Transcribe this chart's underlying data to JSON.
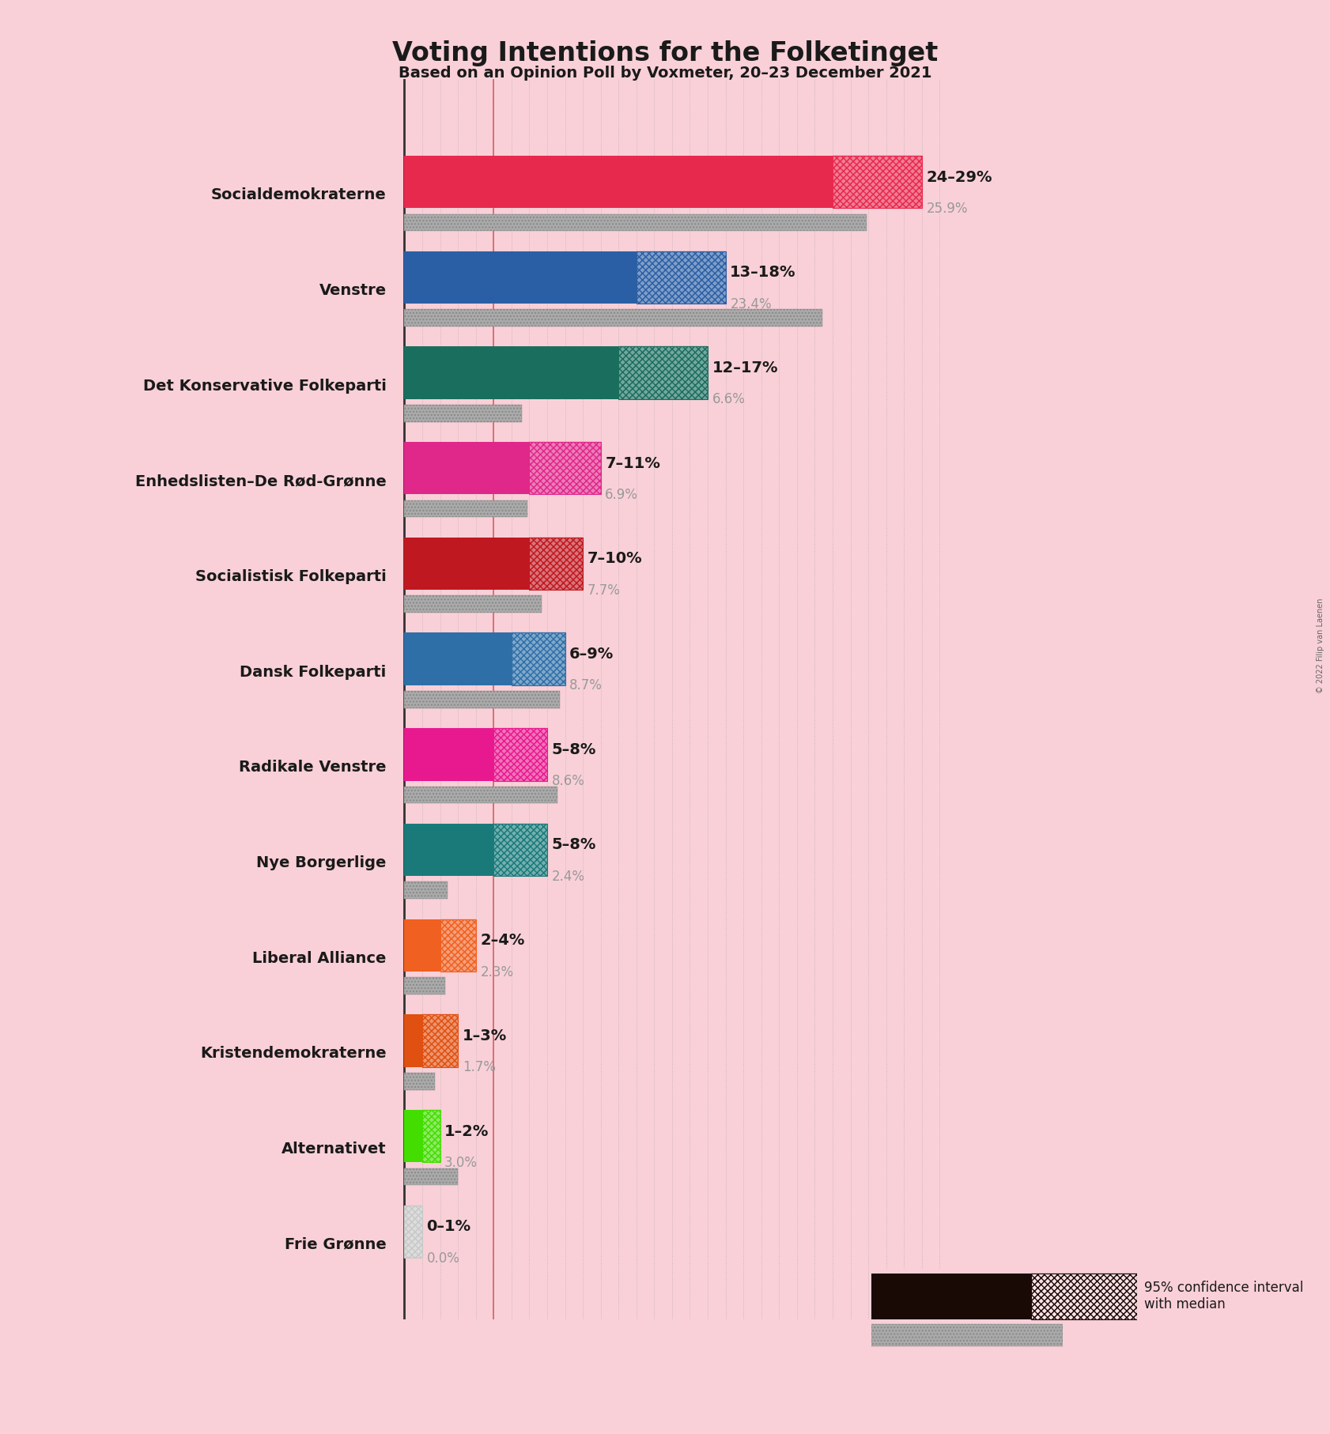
{
  "title": "Voting Intentions for the Folketinget",
  "subtitle": "Based on an Opinion Poll by Voxmeter, 20–23 December 2021",
  "copyright": "© 2022 Filip van Laenen",
  "background_color": "#f9d0d8",
  "parties": [
    {
      "name": "Socialdemokraterne",
      "ci_low": 24,
      "ci_high": 29,
      "last_result": 25.9,
      "color": "#e8294e",
      "label": "24–29%",
      "last_label": "25.9%"
    },
    {
      "name": "Venstre",
      "ci_low": 13,
      "ci_high": 18,
      "last_result": 23.4,
      "color": "#2b5fa5",
      "label": "13–18%",
      "last_label": "23.4%"
    },
    {
      "name": "Det Konservative Folkeparti",
      "ci_low": 12,
      "ci_high": 17,
      "last_result": 6.6,
      "color": "#1a6e5e",
      "label": "12–17%",
      "last_label": "6.6%"
    },
    {
      "name": "Enhedslisten–De Rød-Grønne",
      "ci_low": 7,
      "ci_high": 11,
      "last_result": 6.9,
      "color": "#e0278a",
      "label": "7–11%",
      "last_label": "6.9%"
    },
    {
      "name": "Socialistisk Folkeparti",
      "ci_low": 7,
      "ci_high": 10,
      "last_result": 7.7,
      "color": "#c01820",
      "label": "7–10%",
      "last_label": "7.7%"
    },
    {
      "name": "Dansk Folkeparti",
      "ci_low": 6,
      "ci_high": 9,
      "last_result": 8.7,
      "color": "#2e6fa8",
      "label": "6–9%",
      "last_label": "8.7%"
    },
    {
      "name": "Radikale Venstre",
      "ci_low": 5,
      "ci_high": 8,
      "last_result": 8.6,
      "color": "#e8198e",
      "label": "5–8%",
      "last_label": "8.6%"
    },
    {
      "name": "Nye Borgerlige",
      "ci_low": 5,
      "ci_high": 8,
      "last_result": 2.4,
      "color": "#1a7a7a",
      "label": "5–8%",
      "last_label": "2.4%"
    },
    {
      "name": "Liberal Alliance",
      "ci_low": 2,
      "ci_high": 4,
      "last_result": 2.3,
      "color": "#f06020",
      "label": "2–4%",
      "last_label": "2.3%"
    },
    {
      "name": "Kristendemokraterne",
      "ci_low": 1,
      "ci_high": 3,
      "last_result": 1.7,
      "color": "#e05010",
      "label": "1–3%",
      "last_label": "1.7%"
    },
    {
      "name": "Alternativet",
      "ci_low": 1,
      "ci_high": 2,
      "last_result": 3.0,
      "color": "#44dd00",
      "label": "1–2%",
      "last_label": "3.0%"
    },
    {
      "name": "Frie Grønne",
      "ci_low": 0,
      "ci_high": 1,
      "last_result": 0.0,
      "color": "#c8c8c8",
      "label": "0–1%",
      "last_label": "0.0%"
    }
  ],
  "x_max": 31,
  "last_bar_color": "#aaaaaa",
  "grid_color": "#999999",
  "axis_line_color": "#333333"
}
